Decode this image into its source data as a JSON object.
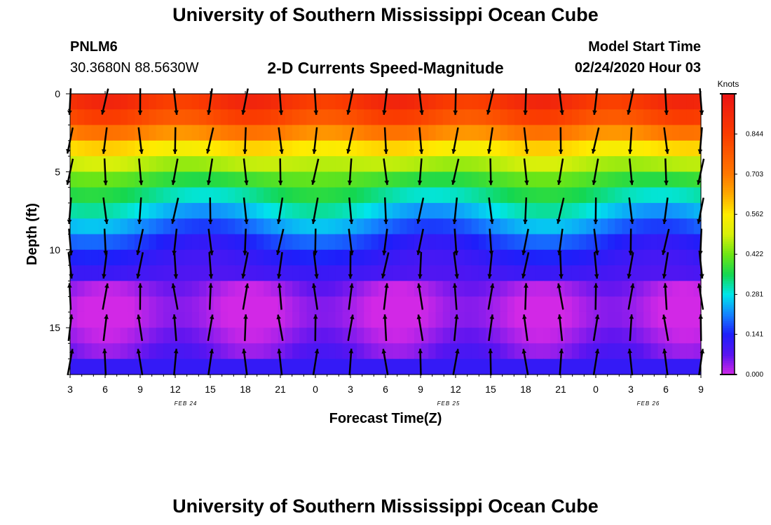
{
  "header": {
    "title": "University of Southern Mississippi Ocean Cube",
    "station": "PNLM6",
    "coordinates": "30.3680N 88.5630W",
    "subtitle": "2-D Currents Speed-Magnitude",
    "model_start_label": "Model Start Time",
    "model_start_value": "02/24/2020 Hour 03"
  },
  "footer": {
    "title": "University of Southern Mississippi Ocean Cube"
  },
  "chart_data": {
    "type": "heatmap",
    "title": "2-D Currents Speed-Magnitude",
    "xlabel": "Forecast Time(Z)",
    "ylabel": "Depth (ft)",
    "x_ticks": [
      "3",
      "6",
      "9",
      "12",
      "15",
      "18",
      "21",
      "0",
      "3",
      "6",
      "9",
      "12",
      "15",
      "18",
      "21",
      "0",
      "3",
      "6",
      "9"
    ],
    "date_labels": [
      {
        "label": "FEB 24",
        "at_hour_index": 3.3
      },
      {
        "label": "FEB 25",
        "at_hour_index": 10.8
      },
      {
        "label": "FEB 26",
        "at_hour_index": 16.5
      }
    ],
    "y_ticks": [
      0,
      5,
      10,
      15
    ],
    "ylim": [
      0,
      18
    ],
    "colorbar": {
      "unit": "Knots",
      "ticks": [
        "0.844",
        "0.703",
        "0.562",
        "0.422",
        "0.281",
        "0.141",
        "0.000"
      ],
      "tick_values": [
        0.844,
        0.703,
        0.562,
        0.422,
        0.281,
        0.141,
        0.0
      ],
      "range": [
        0.0,
        0.985
      ]
    },
    "speed_profile_depths_ft": [
      0,
      1,
      2,
      3,
      4,
      5,
      6,
      7,
      8,
      9,
      10,
      11,
      12,
      13,
      14,
      15,
      16,
      17,
      18
    ],
    "speed_profile_knots": [
      0.9,
      0.86,
      0.76,
      0.62,
      0.52,
      0.42,
      0.36,
      0.3,
      0.24,
      0.18,
      0.13,
      0.11,
      0.08,
      0.05,
      0.04,
      0.05,
      0.08,
      0.1,
      0.13
    ],
    "arrow_depths_ft": [
      0.5,
      3,
      5,
      7.5,
      9.5,
      11,
      13,
      15,
      17.2
    ],
    "arrow_direction_note": "Arrows point mostly downward (southward flow) near surface and upward near the bottom."
  }
}
